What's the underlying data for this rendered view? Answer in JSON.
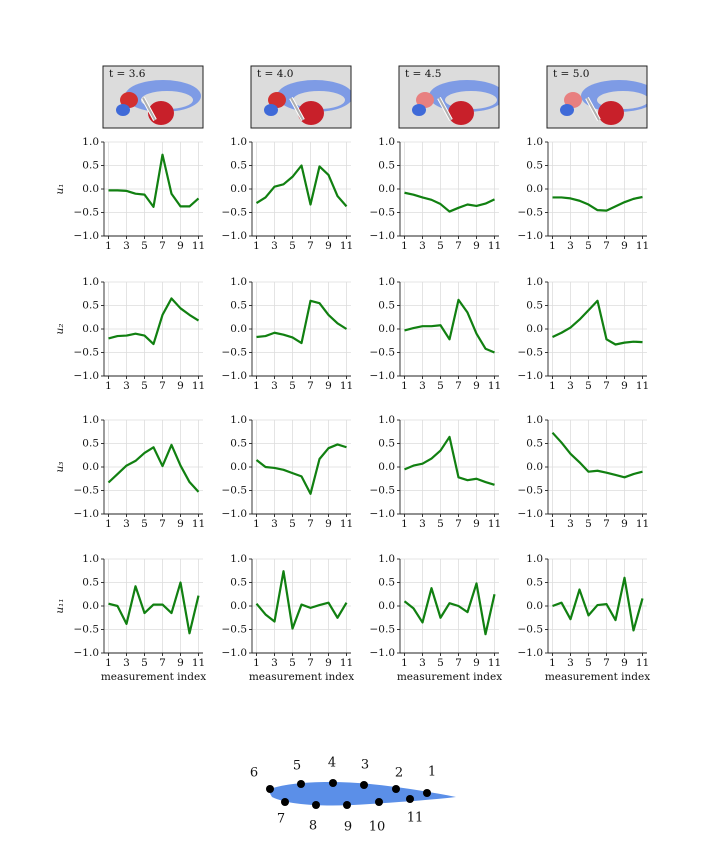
{
  "snapshots": [
    {
      "label": "t = 3.6"
    },
    {
      "label": "t = 4.0"
    },
    {
      "label": "t = 4.5"
    },
    {
      "label": "t = 5.0"
    }
  ],
  "airfoil": {
    "labels": [
      1,
      2,
      3,
      4,
      5,
      6,
      7,
      8,
      9,
      10,
      11
    ]
  },
  "chart_data": [
    {
      "type": "line",
      "ylabel": "u₁",
      "x": [
        1,
        2,
        3,
        4,
        5,
        6,
        7,
        8,
        9,
        10,
        11
      ],
      "values": [
        -0.03,
        -0.03,
        -0.04,
        -0.1,
        -0.12,
        -0.38,
        0.73,
        -0.1,
        -0.37,
        -0.37,
        -0.2
      ],
      "color": "#118011",
      "xlim": [
        0.5,
        11.5
      ],
      "ylim": [
        -1,
        1
      ],
      "xticks": [
        1,
        3,
        5,
        7,
        9,
        11
      ],
      "yticks": [
        {
          "value": -1,
          "label": "−1.0"
        },
        {
          "value": -0.5,
          "label": "−0.5"
        },
        {
          "value": 0,
          "label": "0.0"
        },
        {
          "value": 0.5,
          "label": "0.5"
        },
        {
          "value": 1,
          "label": "1.0"
        }
      ],
      "grid": true
    },
    {
      "type": "line",
      "x": [
        1,
        2,
        3,
        4,
        5,
        6,
        7,
        8,
        9,
        10,
        11
      ],
      "values": [
        -0.3,
        -0.18,
        0.05,
        0.1,
        0.26,
        0.5,
        -0.33,
        0.48,
        0.3,
        -0.15,
        -0.37
      ],
      "color": "#118011",
      "xlim": [
        0.5,
        11.5
      ],
      "ylim": [
        -1,
        1
      ],
      "xticks": [
        1,
        3,
        5,
        7,
        9,
        11
      ],
      "yticks": [
        {
          "value": -1,
          "label": "−1.0"
        },
        {
          "value": -0.5,
          "label": "−0.5"
        },
        {
          "value": 0,
          "label": "0.0"
        },
        {
          "value": 0.5,
          "label": "0.5"
        },
        {
          "value": 1,
          "label": "1.0"
        }
      ],
      "grid": true
    },
    {
      "type": "line",
      "x": [
        1,
        2,
        3,
        4,
        5,
        6,
        7,
        8,
        9,
        10,
        11
      ],
      "values": [
        -0.08,
        -0.12,
        -0.18,
        -0.23,
        -0.32,
        -0.48,
        -0.4,
        -0.33,
        -0.36,
        -0.31,
        -0.22
      ],
      "color": "#118011",
      "xlim": [
        0.5,
        11.5
      ],
      "ylim": [
        -1,
        1
      ],
      "xticks": [
        1,
        3,
        5,
        7,
        9,
        11
      ],
      "yticks": [
        {
          "value": -1,
          "label": "−1.0"
        },
        {
          "value": -0.5,
          "label": "−0.5"
        },
        {
          "value": 0,
          "label": "0.0"
        },
        {
          "value": 0.5,
          "label": "0.5"
        },
        {
          "value": 1,
          "label": "1.0"
        }
      ],
      "grid": true
    },
    {
      "type": "line",
      "x": [
        1,
        2,
        3,
        4,
        5,
        6,
        7,
        8,
        9,
        10,
        11
      ],
      "values": [
        -0.18,
        -0.18,
        -0.2,
        -0.25,
        -0.33,
        -0.45,
        -0.46,
        -0.37,
        -0.28,
        -0.21,
        -0.17
      ],
      "color": "#118011",
      "xlim": [
        0.5,
        11.5
      ],
      "ylim": [
        -1,
        1
      ],
      "xticks": [
        1,
        3,
        5,
        7,
        9,
        11
      ],
      "yticks": [
        {
          "value": -1,
          "label": "−1.0"
        },
        {
          "value": -0.5,
          "label": "−0.5"
        },
        {
          "value": 0,
          "label": "0.0"
        },
        {
          "value": 0.5,
          "label": "0.5"
        },
        {
          "value": 1,
          "label": "1.0"
        }
      ],
      "grid": true
    },
    {
      "type": "line",
      "ylabel": "u₂",
      "x": [
        1,
        2,
        3,
        4,
        5,
        6,
        7,
        8,
        9,
        10,
        11
      ],
      "values": [
        -0.2,
        -0.15,
        -0.14,
        -0.1,
        -0.14,
        -0.32,
        0.3,
        0.65,
        0.44,
        0.3,
        0.18
      ],
      "color": "#118011",
      "xlim": [
        0.5,
        11.5
      ],
      "ylim": [
        -1,
        1
      ],
      "xticks": [
        1,
        3,
        5,
        7,
        9,
        11
      ],
      "yticks": [
        {
          "value": -1,
          "label": "−1.0"
        },
        {
          "value": -0.5,
          "label": "−0.5"
        },
        {
          "value": 0,
          "label": "0.0"
        },
        {
          "value": 0.5,
          "label": "0.5"
        },
        {
          "value": 1,
          "label": "1.0"
        }
      ],
      "grid": true
    },
    {
      "type": "line",
      "x": [
        1,
        2,
        3,
        4,
        5,
        6,
        7,
        8,
        9,
        10,
        11
      ],
      "values": [
        -0.17,
        -0.15,
        -0.08,
        -0.12,
        -0.18,
        -0.3,
        0.6,
        0.55,
        0.3,
        0.12,
        0.0
      ],
      "color": "#118011",
      "xlim": [
        0.5,
        11.5
      ],
      "ylim": [
        -1,
        1
      ],
      "xticks": [
        1,
        3,
        5,
        7,
        9,
        11
      ],
      "yticks": [
        {
          "value": -1,
          "label": "−1.0"
        },
        {
          "value": -0.5,
          "label": "−0.5"
        },
        {
          "value": 0,
          "label": "0.0"
        },
        {
          "value": 0.5,
          "label": "0.5"
        },
        {
          "value": 1,
          "label": "1.0"
        }
      ],
      "grid": true
    },
    {
      "type": "line",
      "x": [
        1,
        2,
        3,
        4,
        5,
        6,
        7,
        8,
        9,
        10,
        11
      ],
      "values": [
        -0.03,
        0.02,
        0.06,
        0.06,
        0.08,
        -0.22,
        0.62,
        0.35,
        -0.1,
        -0.42,
        -0.5
      ],
      "color": "#118011",
      "xlim": [
        0.5,
        11.5
      ],
      "ylim": [
        -1,
        1
      ],
      "xticks": [
        1,
        3,
        5,
        7,
        9,
        11
      ],
      "yticks": [
        {
          "value": -1,
          "label": "−1.0"
        },
        {
          "value": -0.5,
          "label": "−0.5"
        },
        {
          "value": 0,
          "label": "0.0"
        },
        {
          "value": 0.5,
          "label": "0.5"
        },
        {
          "value": 1,
          "label": "1.0"
        }
      ],
      "grid": true
    },
    {
      "type": "line",
      "x": [
        1,
        2,
        3,
        4,
        5,
        6,
        7,
        8,
        9,
        10,
        11
      ],
      "values": [
        -0.17,
        -0.08,
        0.03,
        0.2,
        0.4,
        0.6,
        -0.22,
        -0.33,
        -0.29,
        -0.27,
        -0.28
      ],
      "color": "#118011",
      "xlim": [
        0.5,
        11.5
      ],
      "ylim": [
        -1,
        1
      ],
      "xticks": [
        1,
        3,
        5,
        7,
        9,
        11
      ],
      "yticks": [
        {
          "value": -1,
          "label": "−1.0"
        },
        {
          "value": -0.5,
          "label": "−0.5"
        },
        {
          "value": 0,
          "label": "0.0"
        },
        {
          "value": 0.5,
          "label": "0.5"
        },
        {
          "value": 1,
          "label": "1.0"
        }
      ],
      "grid": true
    },
    {
      "type": "line",
      "ylabel": "u₃",
      "x": [
        1,
        2,
        3,
        4,
        5,
        6,
        7,
        8,
        9,
        10,
        11
      ],
      "values": [
        -0.33,
        -0.15,
        0.03,
        0.13,
        0.3,
        0.42,
        0.02,
        0.47,
        0.03,
        -0.32,
        -0.53
      ],
      "color": "#118011",
      "xlim": [
        0.5,
        11.5
      ],
      "ylim": [
        -1,
        1
      ],
      "xticks": [
        1,
        3,
        5,
        7,
        9,
        11
      ],
      "yticks": [
        {
          "value": -1,
          "label": "−1.0"
        },
        {
          "value": -0.5,
          "label": "−0.5"
        },
        {
          "value": 0,
          "label": "0.0"
        },
        {
          "value": 0.5,
          "label": "0.5"
        },
        {
          "value": 1,
          "label": "1.0"
        }
      ],
      "grid": true
    },
    {
      "type": "line",
      "x": [
        1,
        2,
        3,
        4,
        5,
        6,
        7,
        8,
        9,
        10,
        11
      ],
      "values": [
        0.15,
        0.0,
        -0.02,
        -0.06,
        -0.13,
        -0.2,
        -0.57,
        0.17,
        0.4,
        0.48,
        0.42
      ],
      "color": "#118011",
      "xlim": [
        0.5,
        11.5
      ],
      "ylim": [
        -1,
        1
      ],
      "xticks": [
        1,
        3,
        5,
        7,
        9,
        11
      ],
      "yticks": [
        {
          "value": -1,
          "label": "−1.0"
        },
        {
          "value": -0.5,
          "label": "−0.5"
        },
        {
          "value": 0,
          "label": "0.0"
        },
        {
          "value": 0.5,
          "label": "0.5"
        },
        {
          "value": 1,
          "label": "1.0"
        }
      ],
      "grid": true
    },
    {
      "type": "line",
      "x": [
        1,
        2,
        3,
        4,
        5,
        6,
        7,
        8,
        9,
        10,
        11
      ],
      "values": [
        -0.05,
        0.03,
        0.07,
        0.18,
        0.35,
        0.64,
        -0.22,
        -0.28,
        -0.25,
        -0.32,
        -0.38
      ],
      "color": "#118011",
      "xlim": [
        0.5,
        11.5
      ],
      "ylim": [
        -1,
        1
      ],
      "xticks": [
        1,
        3,
        5,
        7,
        9,
        11
      ],
      "yticks": [
        {
          "value": -1,
          "label": "−1.0"
        },
        {
          "value": -0.5,
          "label": "−0.5"
        },
        {
          "value": 0,
          "label": "0.0"
        },
        {
          "value": 0.5,
          "label": "0.5"
        },
        {
          "value": 1,
          "label": "1.0"
        }
      ],
      "grid": true
    },
    {
      "type": "line",
      "x": [
        1,
        2,
        3,
        4,
        5,
        6,
        7,
        8,
        9,
        10,
        11
      ],
      "values": [
        0.73,
        0.52,
        0.28,
        0.1,
        -0.1,
        -0.08,
        -0.12,
        -0.17,
        -0.22,
        -0.15,
        -0.1
      ],
      "color": "#118011",
      "xlim": [
        0.5,
        11.5
      ],
      "ylim": [
        -1,
        1
      ],
      "xticks": [
        1,
        3,
        5,
        7,
        9,
        11
      ],
      "yticks": [
        {
          "value": -1,
          "label": "−1.0"
        },
        {
          "value": -0.5,
          "label": "−0.5"
        },
        {
          "value": 0,
          "label": "0.0"
        },
        {
          "value": 0.5,
          "label": "0.5"
        },
        {
          "value": 1,
          "label": "1.0"
        }
      ],
      "grid": true
    },
    {
      "type": "line",
      "ylabel": "u₁₁",
      "xlabel": "measurement index",
      "x": [
        1,
        2,
        3,
        4,
        5,
        6,
        7,
        8,
        9,
        10,
        11
      ],
      "values": [
        0.05,
        0.0,
        -0.38,
        0.42,
        -0.15,
        0.03,
        0.03,
        -0.15,
        0.5,
        -0.58,
        0.22
      ],
      "color": "#118011",
      "xlim": [
        0.5,
        11.5
      ],
      "ylim": [
        -1,
        1
      ],
      "xticks": [
        1,
        3,
        5,
        7,
        9,
        11
      ],
      "yticks": [
        {
          "value": -1,
          "label": "−1.0"
        },
        {
          "value": -0.5,
          "label": "−0.5"
        },
        {
          "value": 0,
          "label": "0.0"
        },
        {
          "value": 0.5,
          "label": "0.5"
        },
        {
          "value": 1,
          "label": "1.0"
        }
      ],
      "grid": true
    },
    {
      "type": "line",
      "xlabel": "measurement index",
      "x": [
        1,
        2,
        3,
        4,
        5,
        6,
        7,
        8,
        9,
        10,
        11
      ],
      "values": [
        0.05,
        -0.18,
        -0.33,
        0.74,
        -0.48,
        0.03,
        -0.04,
        0.02,
        0.07,
        -0.25,
        0.07
      ],
      "color": "#118011",
      "xlim": [
        0.5,
        11.5
      ],
      "ylim": [
        -1,
        1
      ],
      "xticks": [
        1,
        3,
        5,
        7,
        9,
        11
      ],
      "yticks": [
        {
          "value": -1,
          "label": "−1.0"
        },
        {
          "value": -0.5,
          "label": "−0.5"
        },
        {
          "value": 0,
          "label": "0.0"
        },
        {
          "value": 0.5,
          "label": "0.5"
        },
        {
          "value": 1,
          "label": "1.0"
        }
      ],
      "grid": true
    },
    {
      "type": "line",
      "xlabel": "measurement index",
      "x": [
        1,
        2,
        3,
        4,
        5,
        6,
        7,
        8,
        9,
        10,
        11
      ],
      "values": [
        0.1,
        -0.05,
        -0.35,
        0.38,
        -0.25,
        0.06,
        0.0,
        -0.13,
        0.48,
        -0.6,
        0.25
      ],
      "color": "#118011",
      "xlim": [
        0.5,
        11.5
      ],
      "ylim": [
        -1,
        1
      ],
      "xticks": [
        1,
        3,
        5,
        7,
        9,
        11
      ],
      "yticks": [
        {
          "value": -1,
          "label": "−1.0"
        },
        {
          "value": -0.5,
          "label": "−0.5"
        },
        {
          "value": 0,
          "label": "0.0"
        },
        {
          "value": 0.5,
          "label": "0.5"
        },
        {
          "value": 1,
          "label": "1.0"
        }
      ],
      "grid": true
    },
    {
      "type": "line",
      "xlabel": "measurement index",
      "x": [
        1,
        2,
        3,
        4,
        5,
        6,
        7,
        8,
        9,
        10,
        11
      ],
      "values": [
        0.0,
        0.07,
        -0.28,
        0.35,
        -0.2,
        0.02,
        0.04,
        -0.3,
        0.6,
        -0.52,
        0.16
      ],
      "color": "#118011",
      "xlim": [
        0.5,
        11.5
      ],
      "ylim": [
        -1,
        1
      ],
      "xticks": [
        1,
        3,
        5,
        7,
        9,
        11
      ],
      "yticks": [
        {
          "value": -1,
          "label": "−1.0"
        },
        {
          "value": -0.5,
          "label": "−0.5"
        },
        {
          "value": 0,
          "label": "0.0"
        },
        {
          "value": 0.5,
          "label": "0.5"
        },
        {
          "value": 1,
          "label": "1.0"
        }
      ],
      "grid": true
    }
  ]
}
